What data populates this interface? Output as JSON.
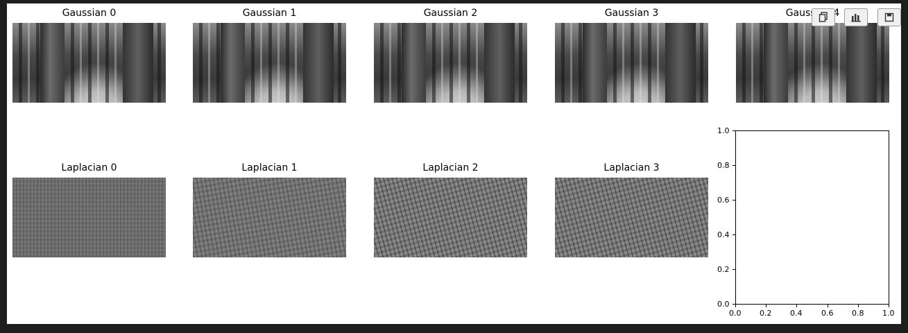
{
  "figure": {
    "gaussian_titles": [
      "Gaussian 0",
      "Gaussian 1",
      "Gaussian 2",
      "Gaussian 3",
      "Gaussian 4"
    ],
    "laplacian_titles": [
      "Laplacian 0",
      "Laplacian 1",
      "Laplacian 2",
      "Laplacian 3"
    ],
    "empty_axes": {
      "x_ticks": [
        "0.0",
        "0.2",
        "0.4",
        "0.6",
        "0.8",
        "1.0"
      ],
      "y_ticks": [
        "0.0",
        "0.2",
        "0.4",
        "0.6",
        "0.8",
        "1.0"
      ]
    }
  },
  "toolbar": {
    "buttons": [
      {
        "icon": "copy-icon"
      },
      {
        "icon": "bar-chart-icon"
      },
      {
        "icon": "save-icon"
      }
    ]
  }
}
